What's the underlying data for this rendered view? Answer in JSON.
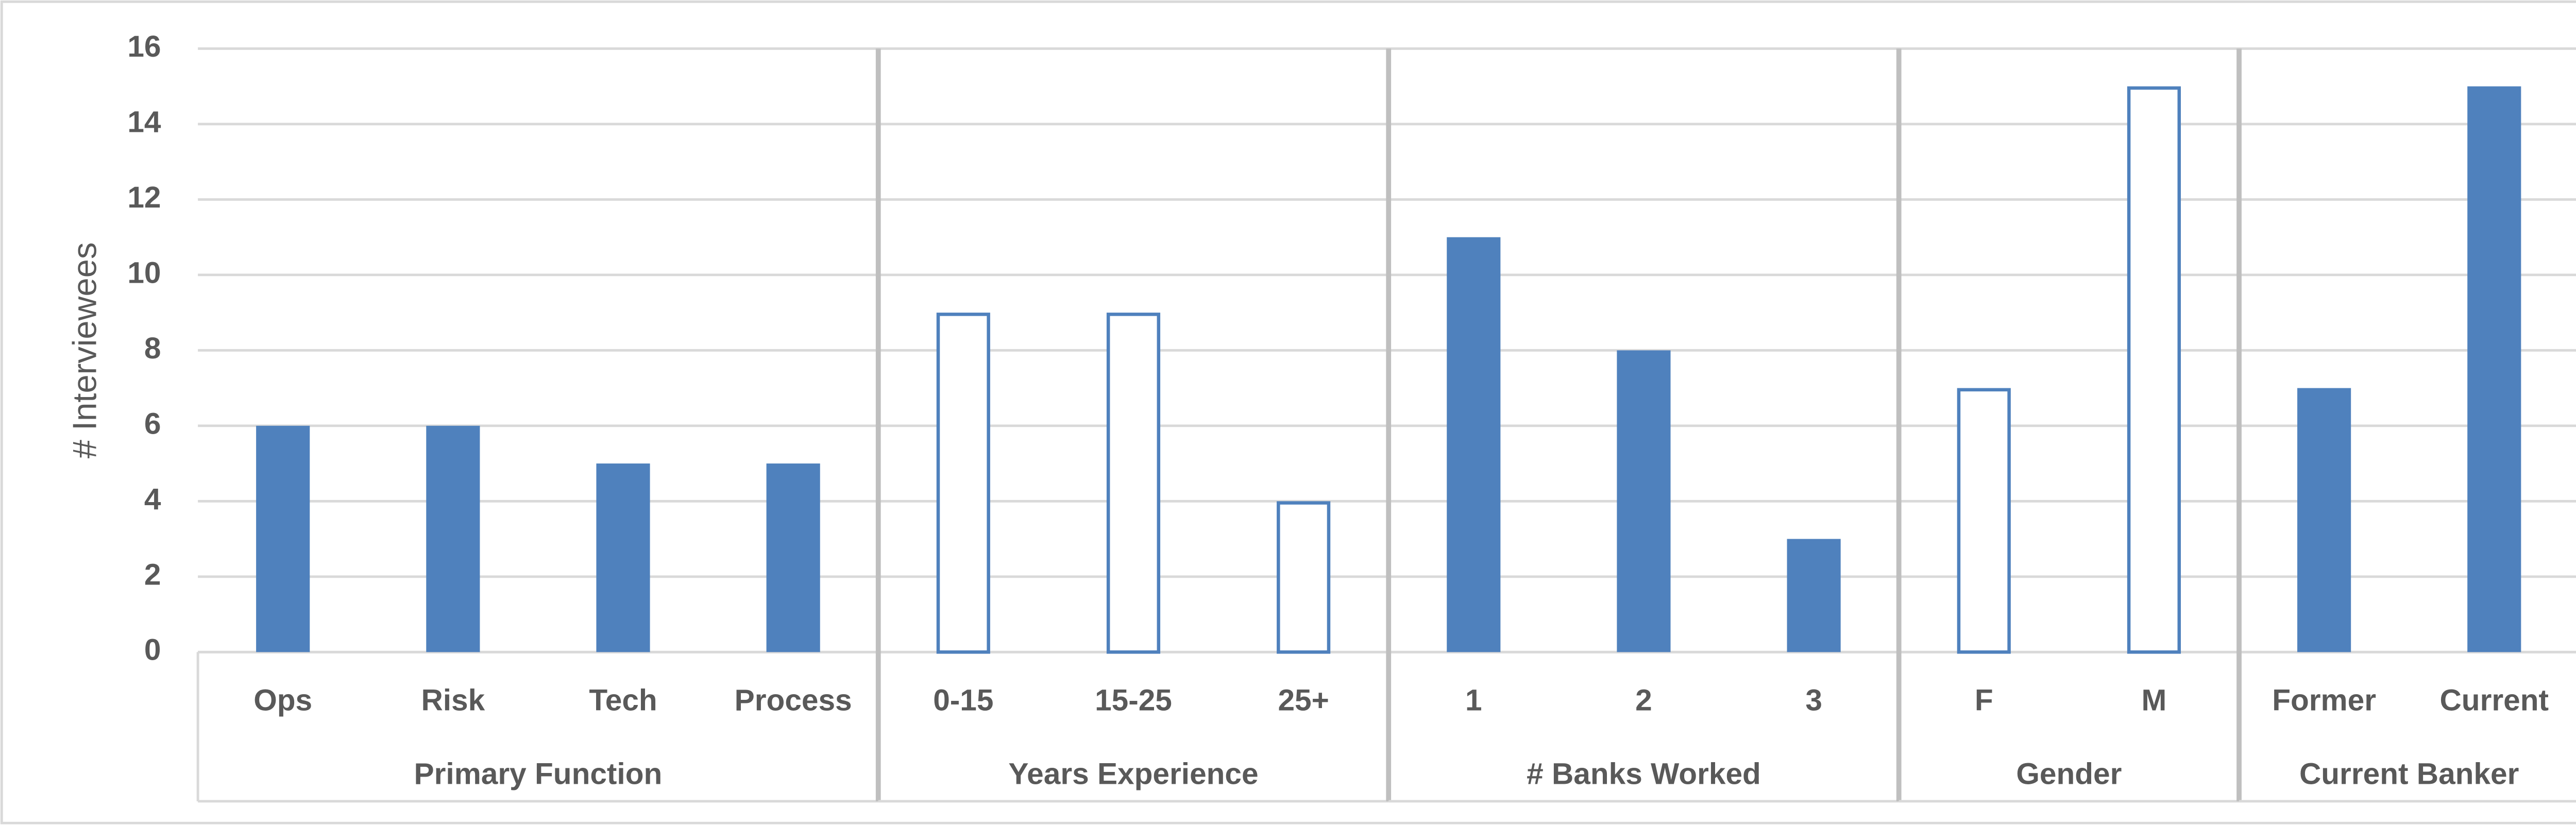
{
  "chart_data": {
    "type": "bar",
    "ylabel": "# Interviewees",
    "color": "#4f81bd",
    "ylim": [
      0,
      16
    ],
    "yticks": [
      0,
      2,
      4,
      6,
      8,
      10,
      12,
      14,
      16
    ],
    "grid": true,
    "groups": [
      {
        "name": "Primary Function",
        "fill": "solid",
        "categories": [
          "Ops",
          "Risk",
          "Tech",
          "Process"
        ],
        "values": [
          6,
          6,
          5,
          5
        ]
      },
      {
        "name": "Years Experience",
        "fill": "outline",
        "categories": [
          "0-15",
          "15-25",
          "25+"
        ],
        "values": [
          9,
          9,
          4
        ]
      },
      {
        "name": "# Banks Worked",
        "fill": "solid",
        "categories": [
          "1",
          "2",
          "3"
        ],
        "values": [
          11,
          8,
          3
        ]
      },
      {
        "name": "Gender",
        "fill": "outline",
        "categories": [
          "F",
          "M"
        ],
        "values": [
          7,
          15
        ]
      },
      {
        "name": "Current Banker",
        "fill": "solid",
        "categories": [
          "Former",
          "Current"
        ],
        "values": [
          7,
          15
        ]
      }
    ]
  }
}
